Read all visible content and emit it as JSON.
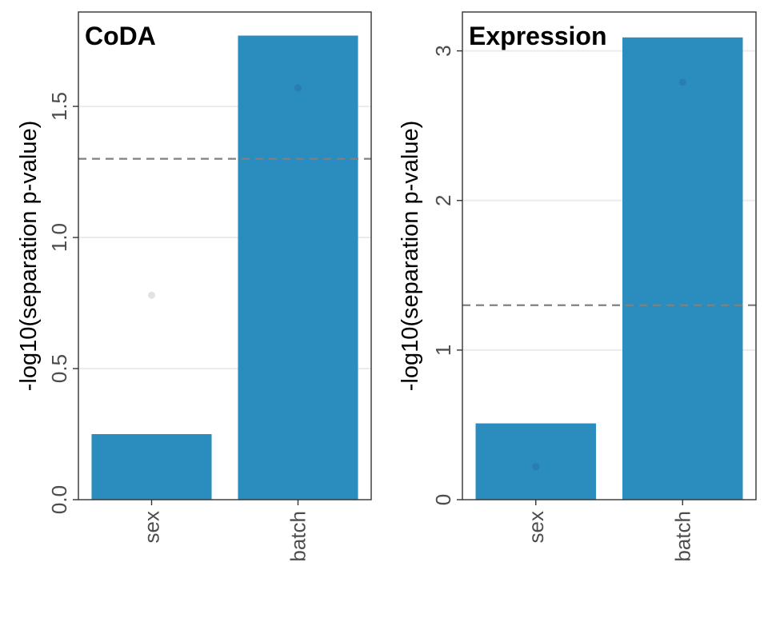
{
  "chart_data": [
    {
      "type": "bar",
      "title": "CoDA",
      "ylabel": "-log10(separation p-value)",
      "xlabel": "",
      "categories": [
        "sex",
        "batch"
      ],
      "values": [
        0.25,
        1.77
      ],
      "points": [
        0.78,
        1.57
      ],
      "ylim": [
        0,
        1.86
      ],
      "yticks": [
        0.0,
        0.5,
        1.0,
        1.5
      ],
      "ytick_labels": [
        "0.0",
        "0.5",
        "1.0",
        "1.5"
      ],
      "reference_line": 1.3,
      "grid": true
    },
    {
      "type": "bar",
      "title": "Expression",
      "ylabel": "-log10(separation p-value)",
      "xlabel": "",
      "categories": [
        "sex",
        "batch"
      ],
      "values": [
        0.51,
        3.09
      ],
      "points": [
        0.22,
        2.79
      ],
      "ylim": [
        0,
        3.26
      ],
      "yticks": [
        0,
        1,
        2,
        3
      ],
      "ytick_labels": [
        "0",
        "1",
        "2",
        "3"
      ],
      "reference_line": 1.3,
      "grid": true
    }
  ],
  "colors": {
    "bar": "#2b8cbe",
    "reference_line": "#808080",
    "sex_point_coda": "#d9d9d9",
    "point_default": "#2a78ad"
  }
}
